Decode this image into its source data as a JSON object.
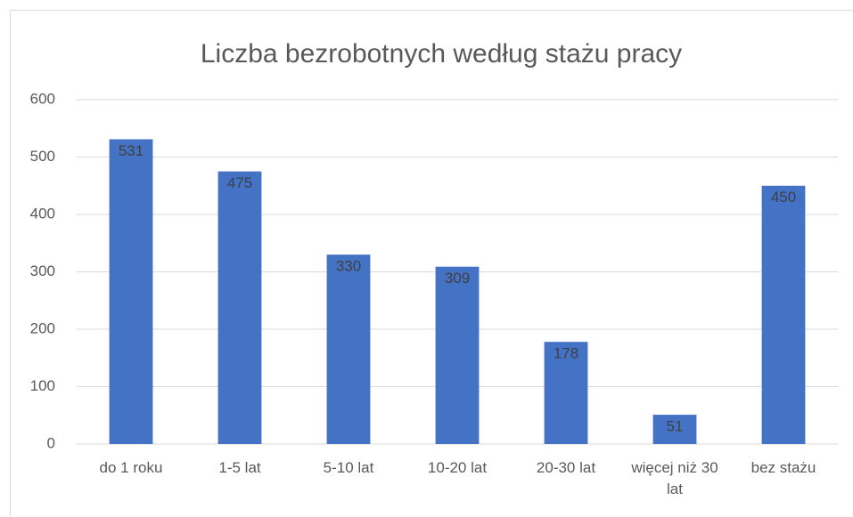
{
  "chart_data": {
    "type": "bar",
    "title": "Liczba bezrobotnych według stażu pracy",
    "categories": [
      "do 1 roku",
      "1-5 lat",
      "5-10 lat",
      "10-20 lat",
      "20-30 lat",
      "więcej niż 30 lat",
      "bez stażu"
    ],
    "values": [
      531,
      475,
      330,
      309,
      178,
      51,
      450
    ],
    "color": "#4472c4",
    "ylim": [
      0,
      600
    ],
    "yticks": [
      0,
      100,
      200,
      300,
      400,
      500,
      600
    ],
    "grid": true
  }
}
